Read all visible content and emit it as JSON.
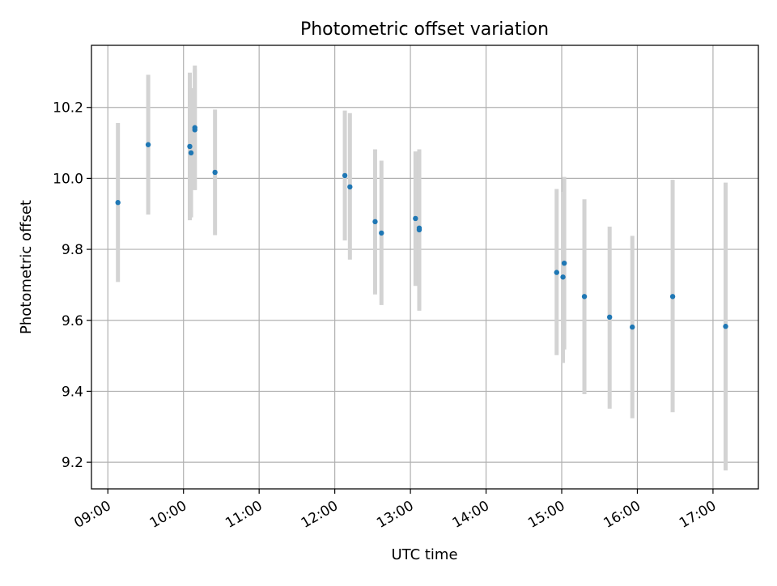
{
  "chart_data": {
    "type": "scatter",
    "title": "Photometric offset variation",
    "xlabel": "UTC time",
    "ylabel": "Photometric offset",
    "x_tick_labels": [
      "09:00",
      "10:00",
      "11:00",
      "12:00",
      "13:00",
      "14:00",
      "15:00",
      "16:00",
      "17:00"
    ],
    "y_tick_labels": [
      "9.2",
      "9.4",
      "9.6",
      "9.8",
      "10.0",
      "10.2"
    ],
    "x_range": [
      "08:47",
      "17:36"
    ],
    "ylim": [
      9.125,
      10.375
    ],
    "grid": true,
    "points": [
      {
        "time": "09:08",
        "y": 9.932,
        "yerr_low": 9.708,
        "yerr_high": 10.156
      },
      {
        "time": "09:32",
        "y": 10.095,
        "yerr_low": 9.898,
        "yerr_high": 10.292
      },
      {
        "time": "10:05",
        "y": 10.09,
        "yerr_low": 9.882,
        "yerr_high": 10.298
      },
      {
        "time": "10:06",
        "y": 10.072,
        "yerr_low": 9.89,
        "yerr_high": 10.254
      },
      {
        "time": "10:09",
        "y": 10.137,
        "yerr_low": 9.967,
        "yerr_high": 10.307
      },
      {
        "time": "10:09",
        "y": 10.143,
        "yerr_low": 9.968,
        "yerr_high": 10.318
      },
      {
        "time": "10:25",
        "y": 10.017,
        "yerr_low": 9.84,
        "yerr_high": 10.194
      },
      {
        "time": "12:08",
        "y": 10.008,
        "yerr_low": 9.825,
        "yerr_high": 10.191
      },
      {
        "time": "12:12",
        "y": 9.976,
        "yerr_low": 9.771,
        "yerr_high": 10.184
      },
      {
        "time": "12:32",
        "y": 9.878,
        "yerr_low": 9.673,
        "yerr_high": 10.082
      },
      {
        "time": "12:37",
        "y": 9.846,
        "yerr_low": 9.643,
        "yerr_high": 10.05
      },
      {
        "time": "13:04",
        "y": 9.887,
        "yerr_low": 9.697,
        "yerr_high": 10.076
      },
      {
        "time": "13:07",
        "y": 9.86,
        "yerr_low": 9.627,
        "yerr_high": 10.082
      },
      {
        "time": "13:07",
        "y": 9.855,
        "yerr_low": 9.63,
        "yerr_high": 10.08
      },
      {
        "time": "14:56",
        "y": 9.735,
        "yerr_low": 9.502,
        "yerr_high": 9.97
      },
      {
        "time": "15:01",
        "y": 9.722,
        "yerr_low": 9.48,
        "yerr_high": 9.962
      },
      {
        "time": "15:02",
        "y": 9.761,
        "yerr_low": 9.518,
        "yerr_high": 10.004
      },
      {
        "time": "15:18",
        "y": 9.667,
        "yerr_low": 9.392,
        "yerr_high": 9.941
      },
      {
        "time": "15:38",
        "y": 9.609,
        "yerr_low": 9.351,
        "yerr_high": 9.864
      },
      {
        "time": "15:56",
        "y": 9.581,
        "yerr_low": 9.324,
        "yerr_high": 9.838
      },
      {
        "time": "16:28",
        "y": 9.667,
        "yerr_low": 9.341,
        "yerr_high": 9.996
      },
      {
        "time": "17:10",
        "y": 9.583,
        "yerr_low": 9.177,
        "yerr_high": 9.988
      }
    ],
    "colors": {
      "points": "#1f77b4",
      "errorbars": "#d3d3d3",
      "grid": "#b0b0b0"
    }
  }
}
